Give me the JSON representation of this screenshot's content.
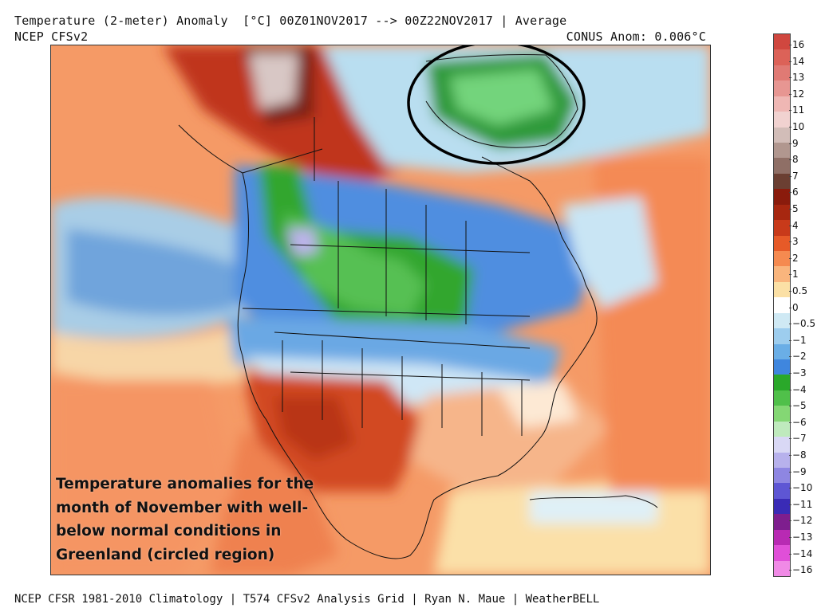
{
  "header": {
    "title": "Temperature (2-meter) Anomaly  [°C] 00Z01NOV2017 --> 00Z22NOV2017 | Average",
    "model": "NCEP CFSv2",
    "conus_anomaly": "CONUS Anom: 0.006°C"
  },
  "footer": "NCEP CFSR 1981-2010 Climatology | T574 CFSv2 Analysis Grid | Ryan N. Maue | WeatherBELL",
  "caption": {
    "lines": [
      "Temperature anomalies for the",
      "month of November with well-",
      "below normal conditions in",
      "Greenland (circled region)"
    ]
  },
  "colorbar": {
    "labels": [
      "16",
      "14",
      "13",
      "12",
      "11",
      "10",
      "9",
      "8",
      "7",
      "6",
      "5",
      "4",
      "3",
      "2",
      "1",
      "0.5",
      "0",
      "−0.5",
      "−1",
      "−2",
      "−3",
      "−4",
      "−5",
      "−6",
      "−7",
      "−8",
      "−9",
      "−10",
      "−11",
      "−12",
      "−13",
      "−14",
      "−16"
    ],
    "colors": [
      "#d0473f",
      "#dc6258",
      "#e07a74",
      "#e79692",
      "#efb7b4",
      "#f1d2d0",
      "#d2bdb8",
      "#b1978f",
      "#8f6f66",
      "#6b3f32",
      "#8a1b0c",
      "#a72710",
      "#c83a1a",
      "#e65a28",
      "#f58a50",
      "#f9b57d",
      "#fbe0a5",
      "#ffffff",
      "#cfe9f4",
      "#9dcdee",
      "#6aaee6",
      "#3f86de",
      "#2aa82a",
      "#50c04a",
      "#84d774",
      "#bfeabd",
      "#d9d8f5",
      "#b7b1ec",
      "#8e86e2",
      "#5e56d4",
      "#3a2bb6",
      "#7e1e8e",
      "#b82ab3",
      "#e04fd8",
      "#f08ae6"
    ]
  },
  "map": {
    "regions": {
      "ocean_north_pacific": "warm",
      "west_pacific_band": "cold",
      "alaska_yukon": "very-warm",
      "western_canada": "very-cold",
      "central_us_north": "cold",
      "southwest_us": "warm",
      "greenland": "very-cold",
      "atlantic": "warm"
    },
    "annotation": "greenland-circle"
  }
}
